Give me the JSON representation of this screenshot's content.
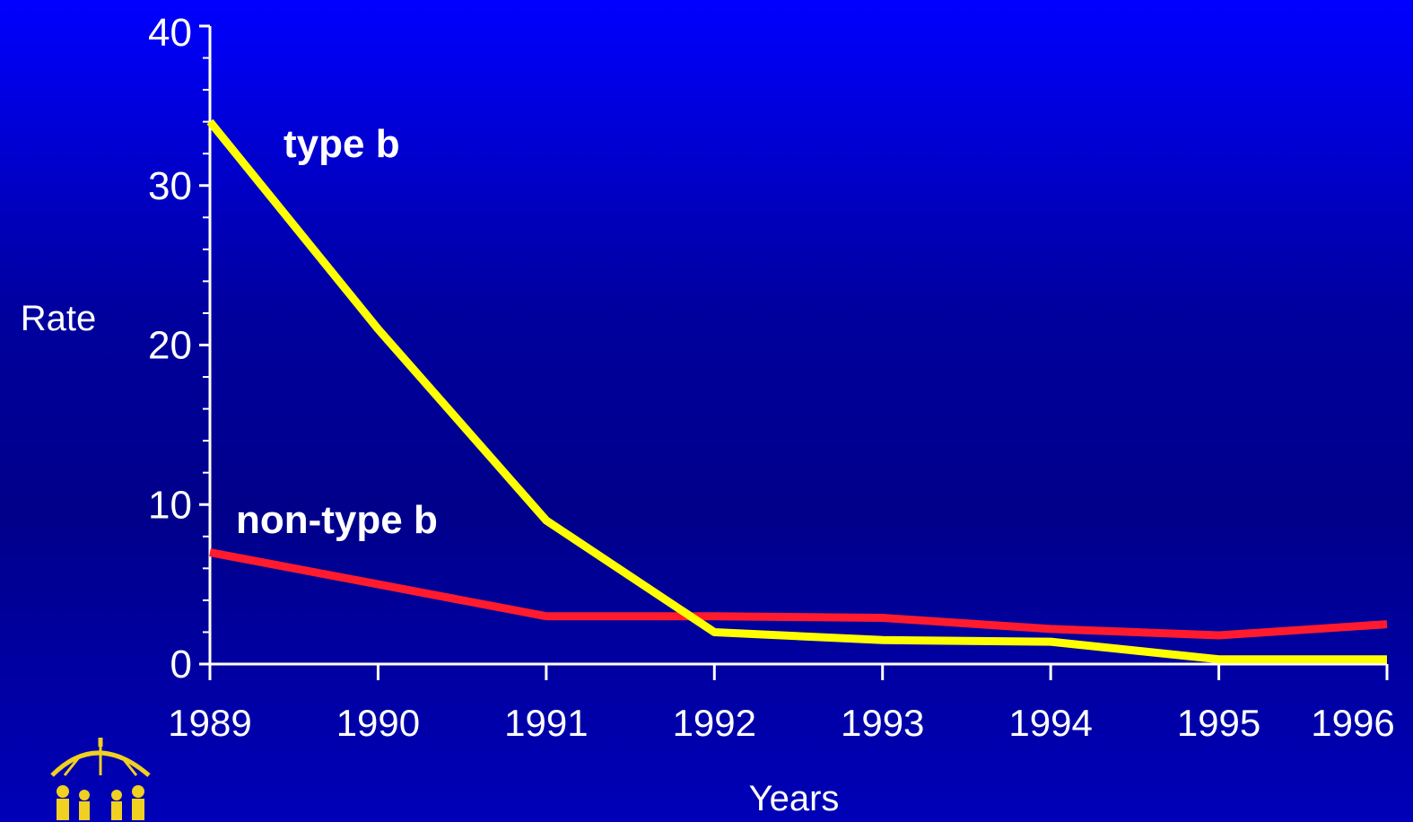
{
  "chart_data": {
    "type": "line",
    "title": "",
    "xlabel": "Years",
    "ylabel": "Rate",
    "x": [
      "1989",
      "1990",
      "1991",
      "1992",
      "1993",
      "1994",
      "1995",
      "1996"
    ],
    "ylim": [
      0,
      40
    ],
    "y_ticks": [
      "0",
      "10",
      "20",
      "30",
      "40"
    ],
    "grid": false,
    "legend": "inline labels",
    "series": [
      {
        "name": "type b",
        "color": "#ffff00",
        "values": [
          34,
          21,
          9,
          2,
          1.5,
          1.4,
          0.3,
          0.3
        ]
      },
      {
        "name": "non-type b",
        "color": "#ff1a2e",
        "values": [
          7,
          5,
          3,
          3,
          2.9,
          2.2,
          1.8,
          2.5
        ]
      }
    ],
    "logo_icon": "umbrella-family-logo"
  }
}
